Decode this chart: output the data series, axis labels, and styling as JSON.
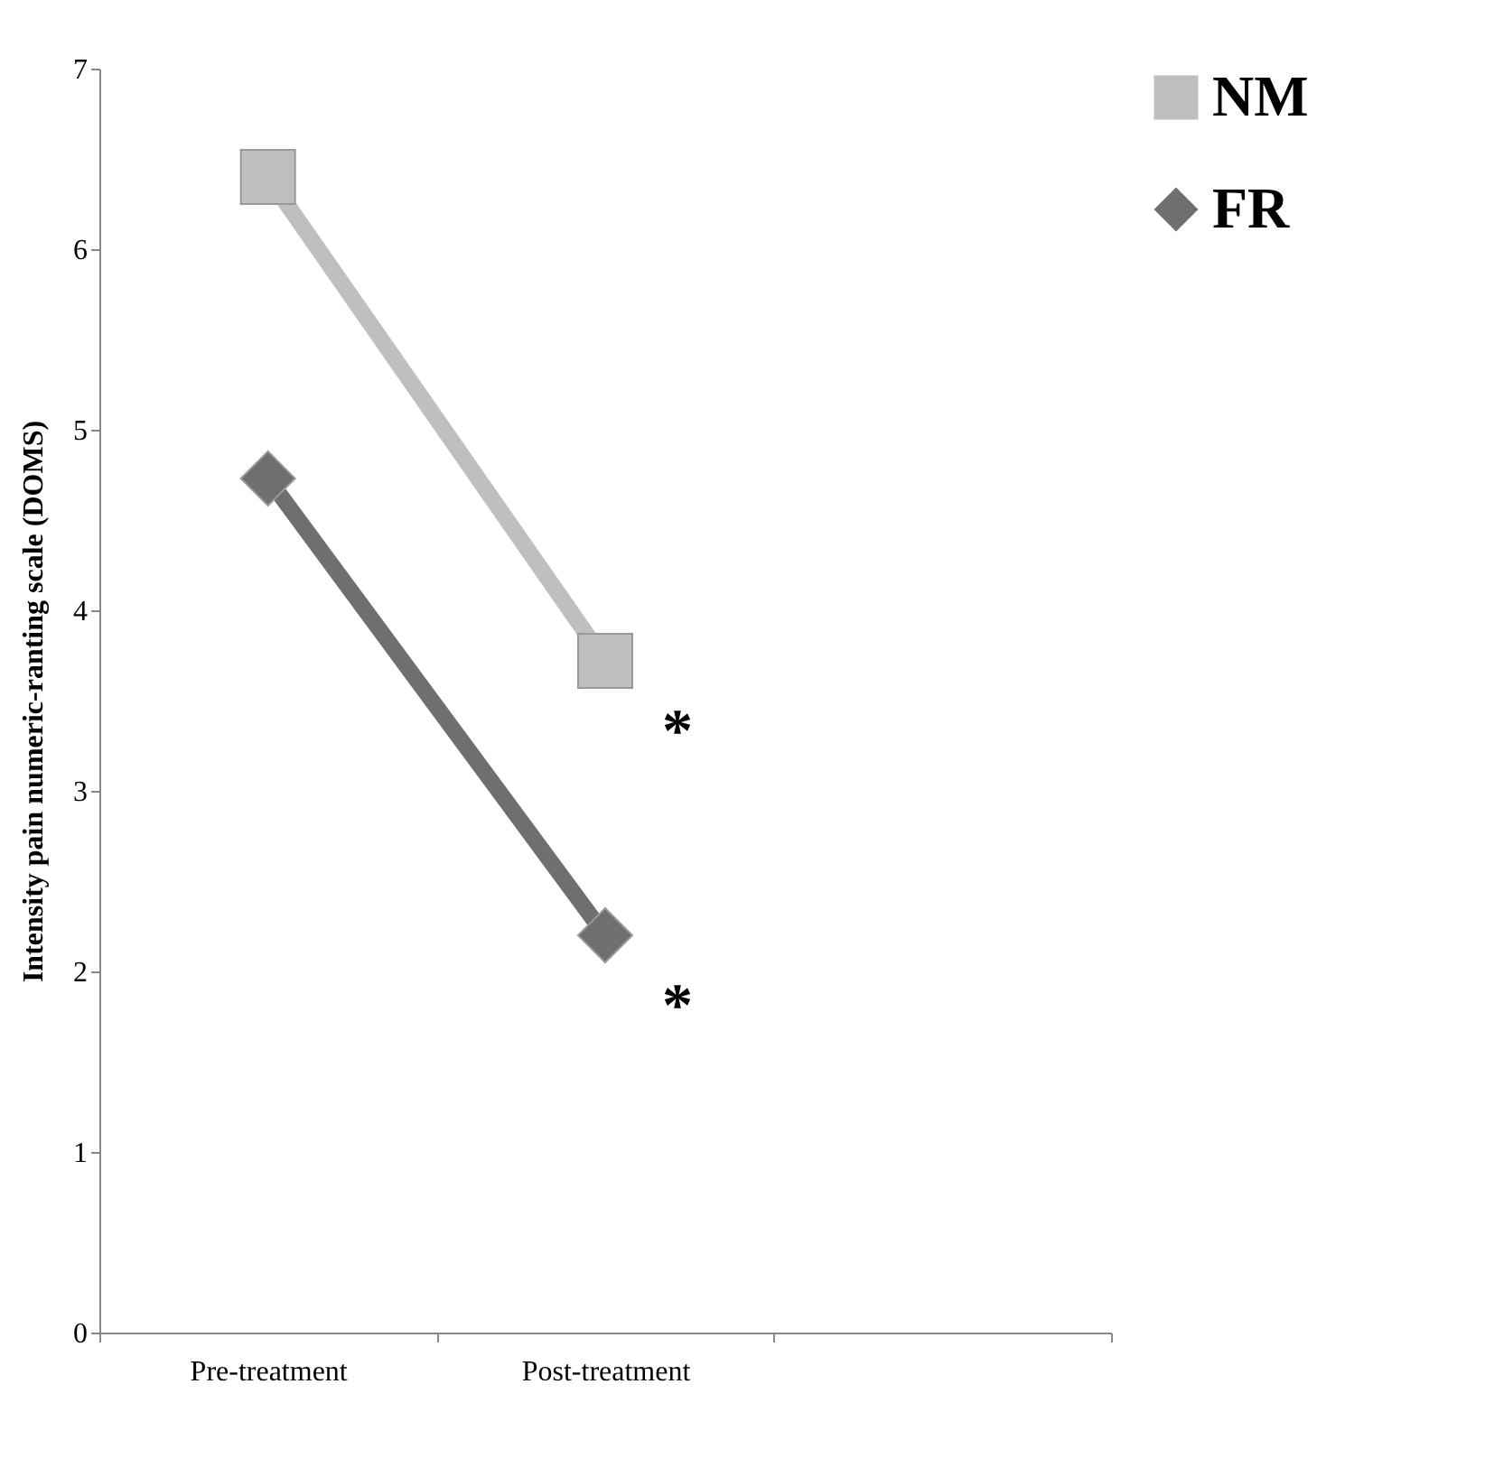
{
  "chart_data": {
    "type": "line",
    "ylabel": "Intensity pain numeric-ranting scale (DOMS)",
    "categories": [
      "Pre-treatment",
      "Post-treatment",
      null
    ],
    "series": [
      {
        "name": "NM",
        "color": "#bfbfbf",
        "marker": "square",
        "values": [
          6.4,
          3.72,
          null
        ]
      },
      {
        "name": "FR",
        "color": "#6f6f6f",
        "marker": "diamond",
        "values": [
          4.73,
          2.2,
          null
        ]
      }
    ],
    "ylim": [
      0,
      7
    ],
    "yticks": [
      0,
      1,
      2,
      3,
      4,
      5,
      6,
      7
    ],
    "grid": false,
    "legend": "right",
    "annotations": [
      "*",
      "*"
    ]
  }
}
